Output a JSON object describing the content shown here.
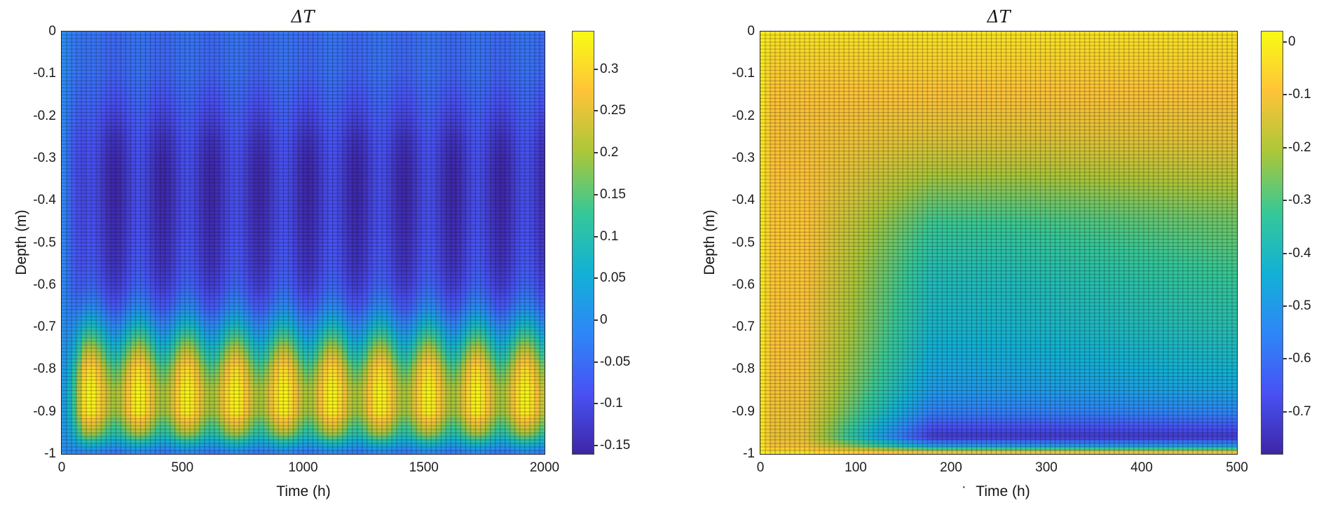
{
  "figure": {
    "background": "#ffffff",
    "text_color": "#141414"
  },
  "colormap": {
    "name": "parula",
    "stops": [
      "#3e26a8",
      "#4852f4",
      "#2e87f7",
      "#12b1d6",
      "#37c897",
      "#abc739",
      "#fec338",
      "#f9fb15"
    ]
  },
  "chart_data": [
    {
      "type": "heatmap",
      "title": "ΔT",
      "xlabel": "Time (h)",
      "ylabel": "Depth (m)",
      "x_range": [
        0,
        2000
      ],
      "y_range": [
        0,
        -1
      ],
      "x_ticks": [
        0,
        500,
        1000,
        1500,
        2000
      ],
      "y_ticks": [
        0,
        -0.1,
        -0.2,
        -0.3,
        -0.4,
        -0.5,
        -0.6,
        -0.7,
        -0.8,
        -0.9,
        -1
      ],
      "clim": [
        -0.16,
        0.345
      ],
      "colorbar_ticks": [
        0.3,
        0.25,
        0.2,
        0.15,
        0.1,
        0.05,
        0,
        -0.05,
        -0.1,
        -0.15
      ],
      "mesh": {
        "cols": 98,
        "rows": 120
      },
      "model": {
        "kind": "periodic_rows",
        "period_h": 200,
        "phase_h": 120,
        "startup_h": 90,
        "rows": [
          [
            0,
            -0.045,
            0.008
          ],
          [
            -0.05,
            -0.05,
            0.008
          ],
          [
            -0.1,
            -0.055,
            0.01
          ],
          [
            -0.15,
            -0.07,
            0.015
          ],
          [
            -0.2,
            -0.09,
            0.02
          ],
          [
            -0.25,
            -0.11,
            0.028
          ],
          [
            -0.3,
            -0.12,
            0.032
          ],
          [
            -0.35,
            -0.125,
            0.032
          ],
          [
            -0.4,
            -0.125,
            0.032
          ],
          [
            -0.45,
            -0.12,
            0.03
          ],
          [
            -0.5,
            -0.115,
            0.03
          ],
          [
            -0.55,
            -0.108,
            0.03
          ],
          [
            -0.6,
            -0.09,
            0.03
          ],
          [
            -0.65,
            -0.045,
            0.035
          ],
          [
            -0.7,
            0.04,
            0.05
          ],
          [
            -0.75,
            0.14,
            0.07
          ],
          [
            -0.8,
            0.23,
            0.08
          ],
          [
            -0.85,
            0.27,
            0.07
          ],
          [
            -0.9,
            0.265,
            0.07
          ],
          [
            -0.95,
            0.16,
            0.05
          ],
          [
            -0.97,
            0.08,
            0.03
          ],
          [
            -1,
            -0.04,
            0.01
          ]
        ]
      }
    },
    {
      "type": "heatmap",
      "title": "ΔT",
      "xlabel": "Time (h)",
      "stray_dot": "·",
      "ylabel": "Depth (m)",
      "x_range": [
        0,
        500
      ],
      "y_range": [
        0,
        -1
      ],
      "x_ticks": [
        0,
        100,
        200,
        300,
        400,
        500
      ],
      "y_ticks": [
        0,
        -0.1,
        -0.2,
        -0.3,
        -0.4,
        -0.5,
        -0.6,
        -0.7,
        -0.8,
        -0.9,
        -1
      ],
      "clim": [
        -0.78,
        0.02
      ],
      "colorbar_ticks": [
        0,
        -0.1,
        -0.2,
        -0.3,
        -0.4,
        -0.5,
        -0.6,
        -0.7
      ],
      "mesh": {
        "cols": 97,
        "rows": 120
      },
      "model": {
        "kind": "transition_rows",
        "ramp_in_h": 12,
        "trans_start_h": 45,
        "trans_len_h": 135,
        "recovery_start_h": 260,
        "recovery_len_h": 240,
        "rows": [
          [
            0,
            -0.02,
            -0.025,
            0
          ],
          [
            -0.05,
            -0.05,
            -0.05,
            0
          ],
          [
            -0.1,
            -0.075,
            -0.075,
            0
          ],
          [
            -0.15,
            -0.09,
            -0.095,
            0
          ],
          [
            -0.2,
            -0.1,
            -0.115,
            0
          ],
          [
            -0.25,
            -0.1,
            -0.135,
            0.01
          ],
          [
            -0.3,
            -0.095,
            -0.17,
            0.02
          ],
          [
            -0.35,
            -0.09,
            -0.22,
            0.03
          ],
          [
            -0.4,
            -0.085,
            -0.27,
            0.04
          ],
          [
            -0.45,
            -0.085,
            -0.315,
            0.05
          ],
          [
            -0.5,
            -0.085,
            -0.345,
            0.06
          ],
          [
            -0.55,
            -0.085,
            -0.37,
            0.06
          ],
          [
            -0.6,
            -0.085,
            -0.39,
            0.06
          ],
          [
            -0.65,
            -0.09,
            -0.405,
            0.055
          ],
          [
            -0.7,
            -0.09,
            -0.42,
            0.05
          ],
          [
            -0.75,
            -0.095,
            -0.44,
            0.045
          ],
          [
            -0.8,
            -0.1,
            -0.465,
            0.04
          ],
          [
            -0.85,
            -0.105,
            -0.5,
            0.03
          ],
          [
            -0.9,
            -0.11,
            -0.565,
            0.02
          ],
          [
            -0.93,
            -0.115,
            -0.65,
            0.01
          ],
          [
            -0.96,
            -0.12,
            -0.73,
            0
          ],
          [
            -0.98,
            -0.1,
            -0.5,
            0
          ],
          [
            -1,
            -0.02,
            -0.03,
            0
          ]
        ]
      }
    }
  ]
}
